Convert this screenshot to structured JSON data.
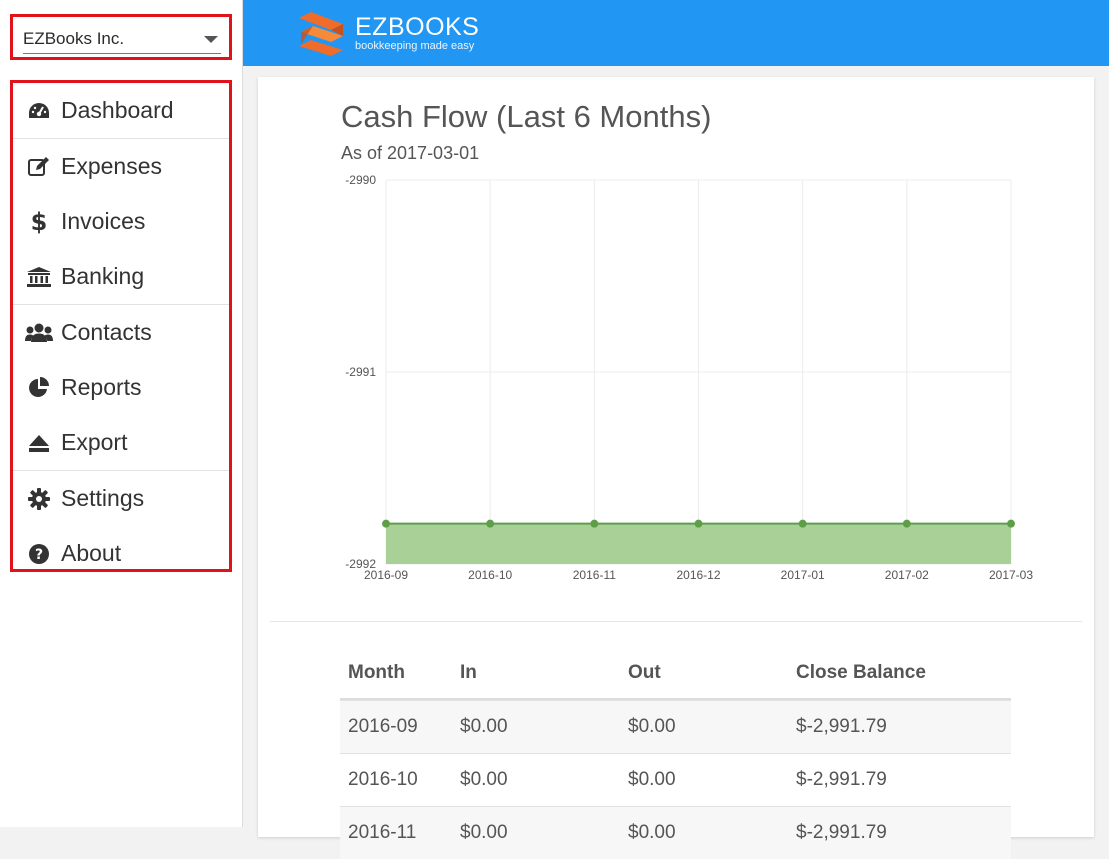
{
  "company": {
    "name": "EZBooks Inc."
  },
  "header": {
    "logo_title": "EZBOOKS",
    "logo_tagline": "bookkeeping made easy"
  },
  "nav": {
    "dashboard": "Dashboard",
    "expenses": "Expenses",
    "invoices": "Invoices",
    "banking": "Banking",
    "contacts": "Contacts",
    "reports": "Reports",
    "export": "Export",
    "settings": "Settings",
    "about": "About"
  },
  "page": {
    "title": "Cash Flow (Last 6 Months)",
    "subtitle": "As of 2017-03-01"
  },
  "chart_data": {
    "type": "area",
    "categories": [
      "2016-09",
      "2016-10",
      "2016-11",
      "2016-12",
      "2017-01",
      "2017-02",
      "2017-03"
    ],
    "values": [
      -2991.79,
      -2991.79,
      -2991.79,
      -2991.79,
      -2991.79,
      -2991.79,
      -2991.79
    ],
    "yticks": [
      "-2990",
      "-2991",
      "-2992"
    ],
    "ylim": [
      -2992,
      -2990
    ],
    "grid": true,
    "colors": {
      "line": "#5f9e48",
      "fill": "#a9d097"
    }
  },
  "table": {
    "headers": {
      "month": "Month",
      "in": "In",
      "out": "Out",
      "balance": "Close Balance"
    },
    "rows": [
      {
        "month": "2016-09",
        "in": "$0.00",
        "out": "$0.00",
        "balance": "$-2,991.79"
      },
      {
        "month": "2016-10",
        "in": "$0.00",
        "out": "$0.00",
        "balance": "$-2,991.79"
      },
      {
        "month": "2016-11",
        "in": "$0.00",
        "out": "$0.00",
        "balance": "$-2,991.79"
      }
    ]
  },
  "colors": {
    "accent": "#2196f3",
    "highlight": "#e0131a"
  }
}
